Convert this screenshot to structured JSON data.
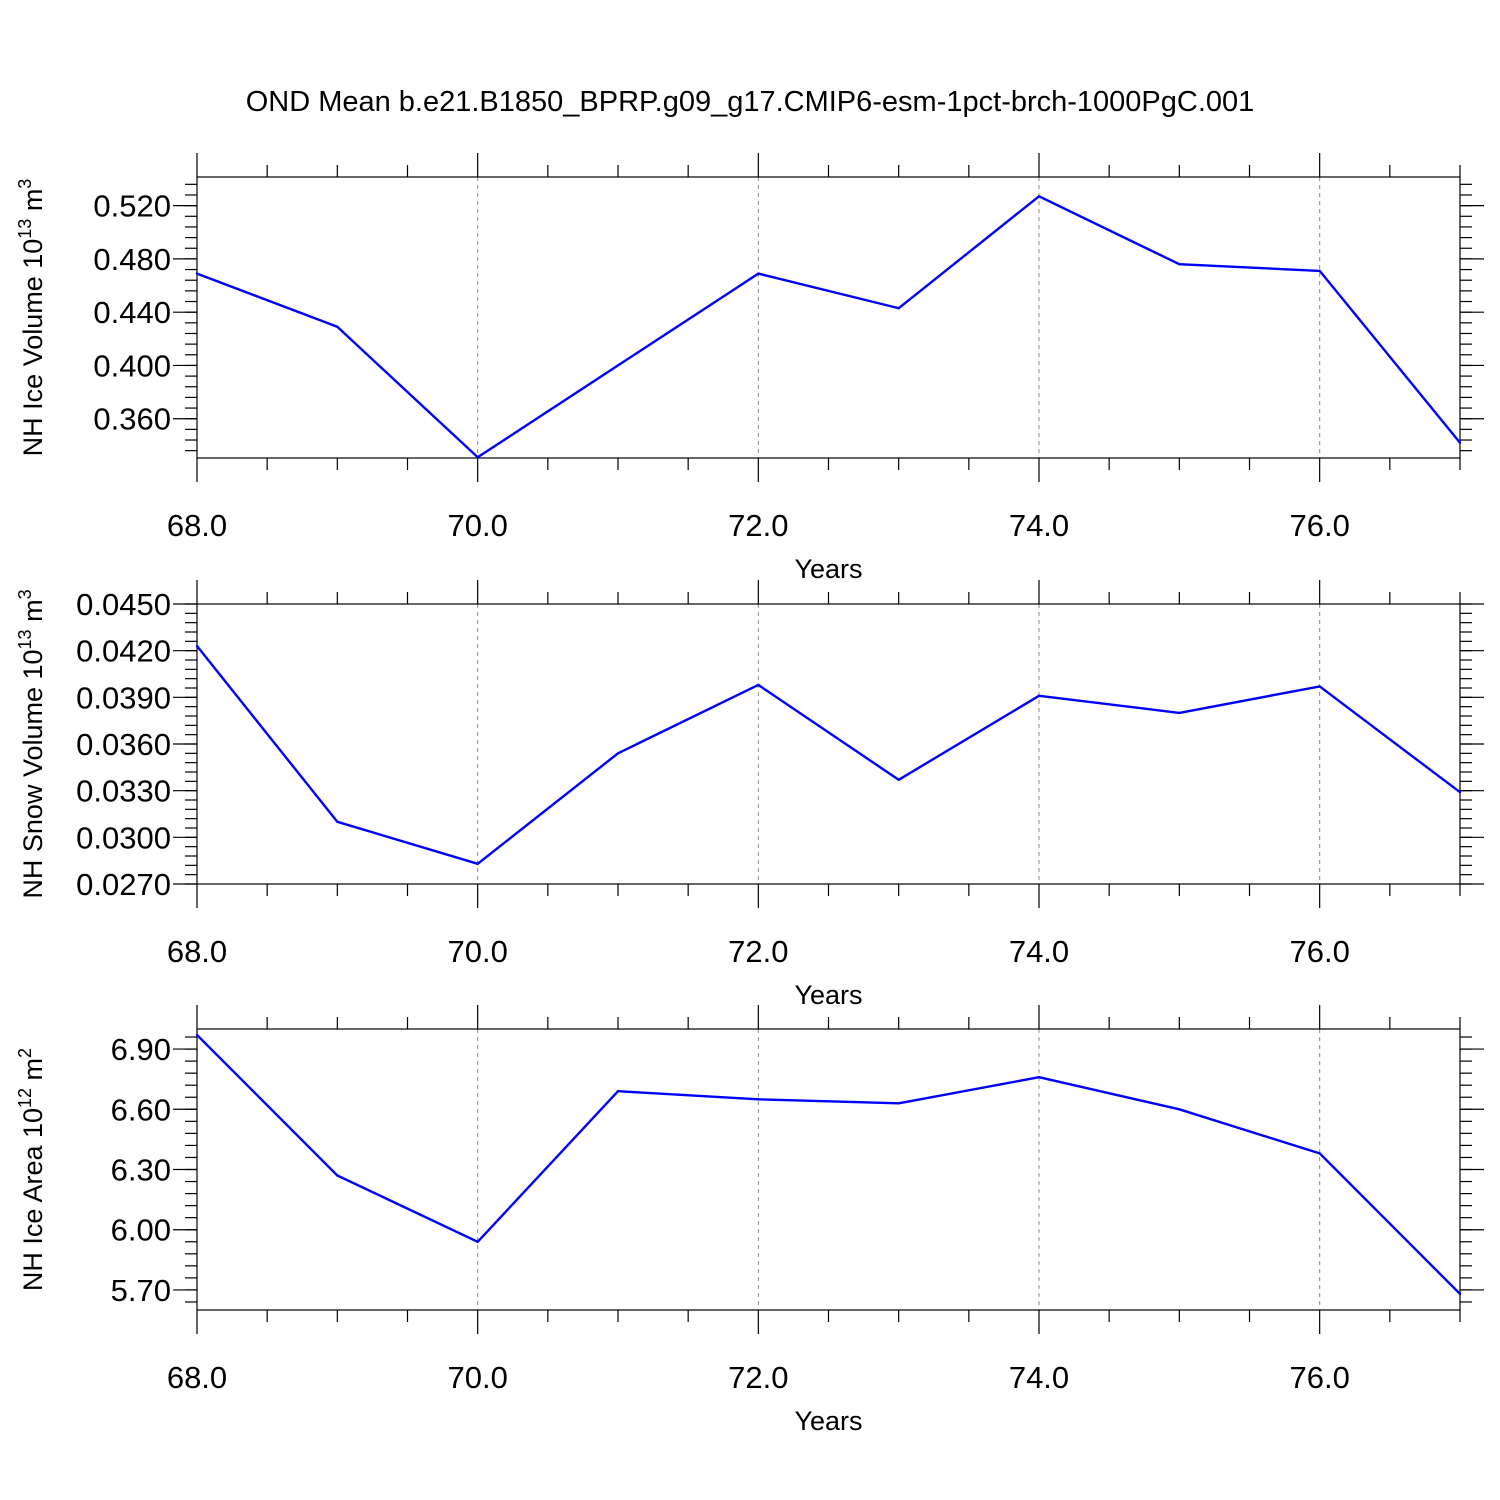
{
  "title": "OND Mean b.e21.B1850_BPRP.g09_g17.CMIP6-esm-1pct-brch-1000PgC.001",
  "chart_data": [
    {
      "type": "line",
      "ylabel_main": "NH Ice Volume 10",
      "ylabel_exp": "13",
      "ylabel_unit": " m",
      "ylabel_unit_exp": "3",
      "xlabel": "Years",
      "x": [
        68,
        69,
        70,
        71,
        72,
        73,
        74,
        75,
        76,
        77
      ],
      "series": [
        {
          "values": [
            0.469,
            0.429,
            0.331,
            0.4,
            0.469,
            0.443,
            0.527,
            0.476,
            0.471,
            0.342
          ]
        }
      ],
      "line_color": "#0000ff",
      "xlim": [
        68,
        77
      ],
      "ylim": [
        0.3305,
        0.5415
      ],
      "yticks": [
        0.36,
        0.4,
        0.44,
        0.48,
        0.52
      ],
      "ytick_labels": [
        "0.360",
        "0.400",
        "0.440",
        "0.480",
        "0.520"
      ],
      "yminor_step": 0.008,
      "xticks": [
        68,
        70,
        72,
        74,
        76
      ],
      "xtick_labels": [
        "68.0",
        "70.0",
        "72.0",
        "74.0",
        "76.0"
      ],
      "grid": "vertical dashed at major x ticks"
    },
    {
      "type": "line",
      "ylabel_main": "NH Snow Volume 10",
      "ylabel_exp": "13",
      "ylabel_unit": " m",
      "ylabel_unit_exp": "3",
      "xlabel": "Years",
      "x": [
        68,
        69,
        70,
        71,
        72,
        73,
        74,
        75,
        76,
        77
      ],
      "series": [
        {
          "values": [
            0.0423,
            0.031,
            0.0283,
            0.0354,
            0.0398,
            0.0337,
            0.0391,
            0.038,
            0.0397,
            0.0329
          ]
        }
      ],
      "line_color": "#0000ff",
      "xlim": [
        68,
        77
      ],
      "ylim": [
        0.027,
        0.045
      ],
      "yticks": [
        0.027,
        0.03,
        0.033,
        0.036,
        0.039,
        0.042,
        0.045
      ],
      "ytick_labels": [
        "0.0270",
        "0.0300",
        "0.0330",
        "0.0360",
        "0.0390",
        "0.0420",
        "0.0450"
      ],
      "yminor_step": 0.0006,
      "xticks": [
        68,
        70,
        72,
        74,
        76
      ],
      "xtick_labels": [
        "68.0",
        "70.0",
        "72.0",
        "74.0",
        "76.0"
      ],
      "grid": "vertical dashed at major x ticks"
    },
    {
      "type": "line",
      "ylabel_main": "NH Ice Area 10",
      "ylabel_exp": "12",
      "ylabel_unit": " m",
      "ylabel_unit_exp": "2",
      "xlabel": "Years",
      "x": [
        68,
        69,
        70,
        71,
        72,
        73,
        74,
        75,
        76,
        77
      ],
      "series": [
        {
          "values": [
            6.97,
            6.27,
            5.94,
            6.69,
            6.65,
            6.63,
            6.76,
            6.6,
            6.38,
            5.68
          ]
        }
      ],
      "line_color": "#0000ff",
      "xlim": [
        68,
        77
      ],
      "ylim": [
        5.6,
        7.0
      ],
      "yticks": [
        5.7,
        6.0,
        6.3,
        6.6,
        6.9
      ],
      "ytick_labels": [
        "5.70",
        "6.00",
        "6.30",
        "6.60",
        "6.90"
      ],
      "yminor_step": 0.06,
      "xticks": [
        68,
        70,
        72,
        74,
        76
      ],
      "xtick_labels": [
        "68.0",
        "70.0",
        "72.0",
        "74.0",
        "76.0"
      ],
      "grid": "vertical dashed at major x ticks"
    }
  ]
}
